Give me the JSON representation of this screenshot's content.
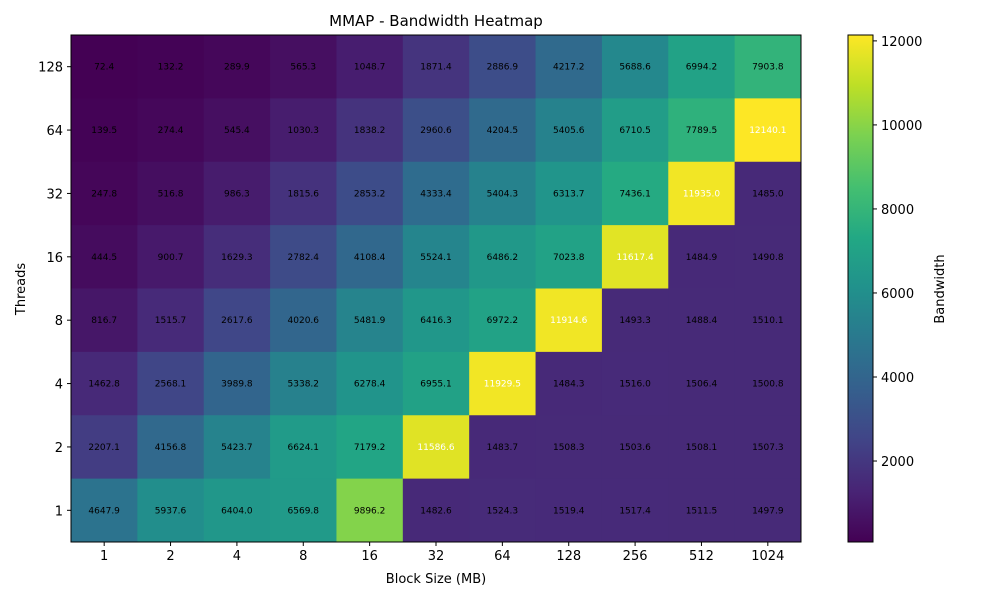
{
  "chart_data": {
    "type": "heatmap",
    "title": "MMAP - Bandwidth Heatmap",
    "xlabel": "Block Size (MB)",
    "ylabel": "Threads",
    "x_categories": [
      "1",
      "2",
      "4",
      "8",
      "16",
      "32",
      "64",
      "128",
      "256",
      "512",
      "1024"
    ],
    "y_categories": [
      "128",
      "64",
      "32",
      "16",
      "8",
      "4",
      "2",
      "1"
    ],
    "values": [
      [
        72.4,
        132.2,
        289.9,
        565.3,
        1048.7,
        1871.4,
        2886.9,
        4217.2,
        5688.6,
        6994.2,
        7903.8
      ],
      [
        139.5,
        274.4,
        545.4,
        1030.3,
        1838.2,
        2960.6,
        4204.5,
        5405.6,
        6710.5,
        7789.5,
        12140.1
      ],
      [
        247.8,
        516.8,
        986.3,
        1815.6,
        2853.2,
        4333.4,
        5404.3,
        6313.7,
        7436.1,
        11935.0,
        1485.0
      ],
      [
        444.5,
        900.7,
        1629.3,
        2782.4,
        4108.4,
        5524.1,
        6486.2,
        7023.8,
        11617.4,
        1484.9,
        1490.8
      ],
      [
        816.7,
        1515.7,
        2617.6,
        4020.6,
        5481.9,
        6416.3,
        6972.2,
        11914.6,
        1493.3,
        1488.4,
        1510.1
      ],
      [
        1462.8,
        2568.1,
        3989.8,
        5338.2,
        6278.4,
        6955.1,
        11929.5,
        1484.3,
        1516.0,
        1506.4,
        1500.8
      ],
      [
        2207.1,
        4156.8,
        5423.7,
        6624.1,
        7179.2,
        11586.6,
        1483.7,
        1508.3,
        1503.6,
        1508.1,
        1507.3
      ],
      [
        4647.9,
        5937.6,
        6404.0,
        6569.8,
        9896.2,
        1482.6,
        1524.3,
        1519.4,
        1517.4,
        1511.5,
        1497.9
      ]
    ],
    "colormap": "viridis",
    "color_range": [
      72.4,
      12140.1
    ],
    "colorbar": {
      "label": "Bandwidth",
      "ticks": [
        "2000",
        "4000",
        "6000",
        "8000",
        "10000",
        "12000"
      ],
      "tick_values": [
        2000,
        4000,
        6000,
        8000,
        10000,
        12000
      ]
    },
    "annotations": "values printed in each cell"
  }
}
